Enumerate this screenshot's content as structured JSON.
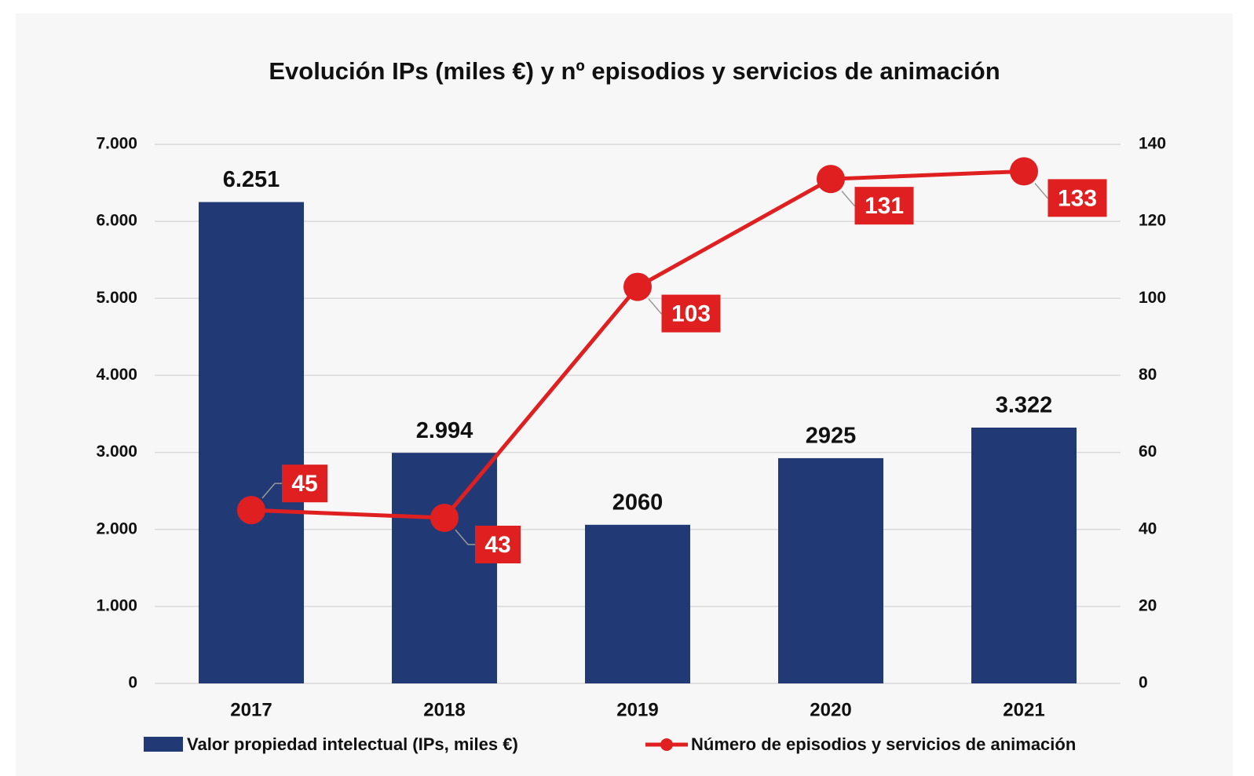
{
  "chart_data": {
    "type": "bar",
    "title": "Evolución IPs (miles €) y nº episodios y servicios de animación",
    "categories": [
      "2017",
      "2018",
      "2019",
      "2020",
      "2021"
    ],
    "series": [
      {
        "name": "Valor propiedad intelectual (IPs, miles €)",
        "type": "bar",
        "color": "#213a76",
        "values": [
          6251,
          2994,
          2060,
          2925,
          3322
        ],
        "value_labels": [
          "6.251",
          "2.994",
          "2060",
          "2925",
          "3.322"
        ]
      },
      {
        "name": "Número de episodios y servicios de animación",
        "type": "line",
        "color": "#e02020",
        "axis": "y2",
        "values": [
          45,
          43,
          103,
          131,
          133
        ]
      }
    ],
    "ylim": [
      0,
      7000
    ],
    "yticks": [
      0,
      {
        "value": 1000,
        "label": "1.000"
      },
      {
        "value": 2000,
        "label": "2.000"
      },
      {
        "value": 3000,
        "label": "3.000"
      },
      {
        "value": 4000,
        "label": "4.000"
      },
      {
        "value": 5000,
        "label": "5.000"
      },
      {
        "value": 6000,
        "label": "6.000"
      },
      {
        "value": 7000,
        "label": "7.000"
      }
    ],
    "y2lim": [
      0,
      140
    ],
    "y2ticks": [
      0,
      20,
      40,
      60,
      80,
      100,
      120,
      140
    ],
    "grid": true
  }
}
